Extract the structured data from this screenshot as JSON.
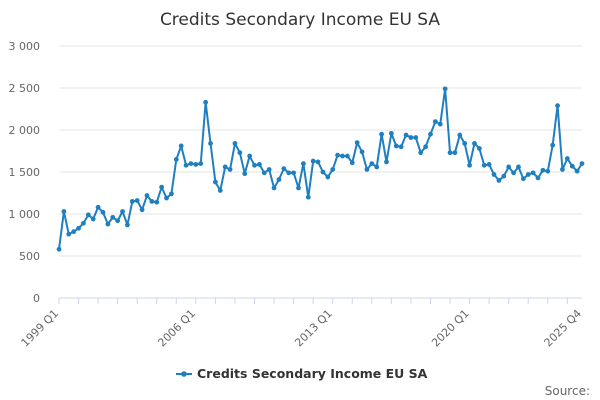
{
  "chart_data": {
    "type": "line",
    "title": "Credits Secondary Income EU SA",
    "source_label": "Source:",
    "ylim": [
      0,
      3000
    ],
    "yticks": [
      0,
      500,
      1000,
      1500,
      2000,
      2500,
      3000
    ],
    "ytick_labels": [
      "0",
      "500",
      "1 000",
      "1 500",
      "2 000",
      "2 500",
      "3 000"
    ],
    "xtick_labels": [
      "1999 Q1",
      "2006 Q1",
      "2013 Q1",
      "2020 Q1",
      "2025 Q4"
    ],
    "xtick_indices": [
      0,
      28,
      56,
      84,
      107
    ],
    "grid": true,
    "legend_position": "bottom",
    "colors": {
      "series": "#1f7fbf"
    },
    "x": [
      "1999 Q1",
      "1999 Q2",
      "1999 Q3",
      "1999 Q4",
      "2000 Q1",
      "2000 Q2",
      "2000 Q3",
      "2000 Q4",
      "2001 Q1",
      "2001 Q2",
      "2001 Q3",
      "2001 Q4",
      "2002 Q1",
      "2002 Q2",
      "2002 Q3",
      "2002 Q4",
      "2003 Q1",
      "2003 Q2",
      "2003 Q3",
      "2003 Q4",
      "2004 Q1",
      "2004 Q2",
      "2004 Q3",
      "2004 Q4",
      "2005 Q1",
      "2005 Q2",
      "2005 Q3",
      "2005 Q4",
      "2006 Q1",
      "2006 Q2",
      "2006 Q3",
      "2006 Q4",
      "2007 Q1",
      "2007 Q2",
      "2007 Q3",
      "2007 Q4",
      "2008 Q1",
      "2008 Q2",
      "2008 Q3",
      "2008 Q4",
      "2009 Q1",
      "2009 Q2",
      "2009 Q3",
      "2009 Q4",
      "2010 Q1",
      "2010 Q2",
      "2010 Q3",
      "2010 Q4",
      "2011 Q1",
      "2011 Q2",
      "2011 Q3",
      "2011 Q4",
      "2012 Q1",
      "2012 Q2",
      "2012 Q3",
      "2012 Q4",
      "2013 Q1",
      "2013 Q2",
      "2013 Q3",
      "2013 Q4",
      "2014 Q1",
      "2014 Q2",
      "2014 Q3",
      "2014 Q4",
      "2015 Q1",
      "2015 Q2",
      "2015 Q3",
      "2015 Q4",
      "2016 Q1",
      "2016 Q2",
      "2016 Q3",
      "2016 Q4",
      "2017 Q1",
      "2017 Q2",
      "2017 Q3",
      "2017 Q4",
      "2018 Q1",
      "2018 Q2",
      "2018 Q3",
      "2018 Q4",
      "2019 Q1",
      "2019 Q2",
      "2019 Q3",
      "2019 Q4",
      "2020 Q1",
      "2020 Q2",
      "2020 Q3",
      "2020 Q4",
      "2021 Q1",
      "2021 Q2",
      "2021 Q3",
      "2021 Q4",
      "2022 Q1",
      "2022 Q2",
      "2022 Q3",
      "2022 Q4",
      "2023 Q1",
      "2023 Q2",
      "2023 Q3",
      "2023 Q4",
      "2024 Q1",
      "2024 Q2",
      "2024 Q3",
      "2024 Q4",
      "2025 Q1",
      "2025 Q2",
      "2025 Q3",
      "2025 Q4"
    ],
    "series": [
      {
        "name": "Credits Secondary Income EU SA",
        "values": [
          580,
          1030,
          760,
          790,
          830,
          890,
          990,
          940,
          1080,
          1020,
          880,
          960,
          920,
          1030,
          870,
          1150,
          1160,
          1050,
          1220,
          1150,
          1140,
          1320,
          1190,
          1240,
          1650,
          1810,
          1580,
          1600,
          1590,
          1600,
          2330,
          1840,
          1380,
          1280,
          1560,
          1530,
          1840,
          1730,
          1480,
          1690,
          1580,
          1590,
          1490,
          1530,
          1310,
          1410,
          1540,
          1490,
          1490,
          1310,
          1600,
          1200,
          1630,
          1620,
          1500,
          1440,
          1530,
          1700,
          1690,
          1690,
          1610,
          1850,
          1740,
          1530,
          1600,
          1560,
          1950,
          1620,
          1960,
          1810,
          1800,
          1940,
          1910,
          1910,
          1730,
          1800,
          1950,
          2100,
          2070,
          2490,
          1730,
          1730,
          1940,
          1840,
          1580,
          1840,
          1780,
          1580,
          1590,
          1470,
          1400,
          1450,
          1560,
          1490,
          1560,
          1420,
          1470,
          1490,
          1430,
          1520,
          1510,
          1820,
          2290,
          1530,
          1660,
          1570,
          1510,
          1600
        ]
      }
    ]
  }
}
